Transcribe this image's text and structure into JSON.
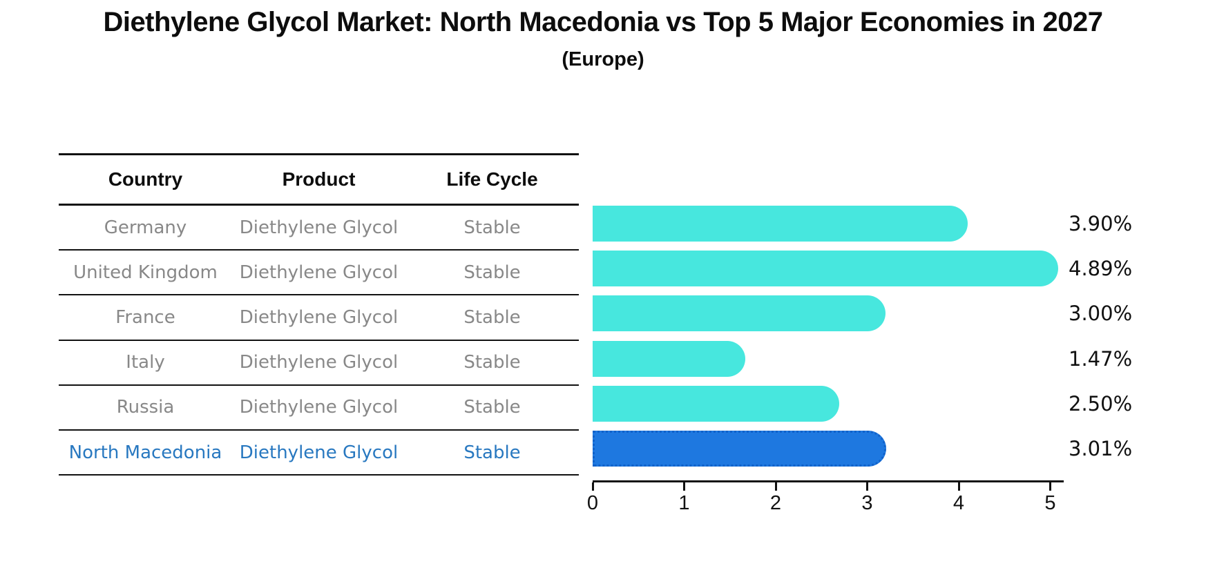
{
  "title": "Diethylene Glycol Market: North Macedonia vs Top 5 Major Economies in 2027",
  "subtitle": "(Europe)",
  "table": {
    "headers": [
      "Country",
      "Product",
      "Life Cycle"
    ],
    "rows": [
      {
        "country": "Germany",
        "product": "Diethylene Glycol",
        "life_cycle": "Stable",
        "text_color": "#888888"
      },
      {
        "country": "United Kingdom",
        "product": "Diethylene Glycol",
        "life_cycle": "Stable",
        "text_color": "#888888"
      },
      {
        "country": "France",
        "product": "Diethylene Glycol",
        "life_cycle": "Stable",
        "text_color": "#888888"
      },
      {
        "country": "Italy",
        "product": "Diethylene Glycol",
        "life_cycle": "Stable",
        "text_color": "#888888"
      },
      {
        "country": "Russia",
        "product": "Diethylene Glycol",
        "life_cycle": "Stable",
        "text_color": "#888888"
      },
      {
        "country": "North Macedonia",
        "product": "Diethylene Glycol",
        "life_cycle": "Stable",
        "text_color": "#2878c0"
      }
    ]
  },
  "chart_data": {
    "type": "bar",
    "orientation": "horizontal",
    "title": "Diethylene Glycol Market: North Macedonia vs Top 5 Major Economies in 2027 (Europe)",
    "categories": [
      "Germany",
      "United Kingdom",
      "France",
      "Italy",
      "Russia",
      "North Macedonia"
    ],
    "values": [
      3.9,
      4.89,
      3.0,
      1.47,
      2.5,
      3.01
    ],
    "value_labels": [
      "3.90%",
      "4.89%",
      "3.00%",
      "1.47%",
      "2.50%",
      "3.01%"
    ],
    "bar_colors": [
      "#47E7DE",
      "#47E7DE",
      "#47E7DE",
      "#47E7DE",
      "#47E7DE",
      "#1E78E0"
    ],
    "highlight_index": 5,
    "highlight_category": "North Macedonia",
    "xlabel": "",
    "ylabel": "",
    "xlim": [
      0,
      5
    ],
    "x_ticks": [
      "0",
      "1",
      "2",
      "3",
      "4",
      "5"
    ],
    "grid": "off",
    "legend": "none"
  },
  "colors": {
    "accent_turquoise": "#47E7DE",
    "accent_blue": "#1E78E0",
    "highlight_text": "#2878c0",
    "muted_text": "#888888",
    "axis": "#111111"
  }
}
